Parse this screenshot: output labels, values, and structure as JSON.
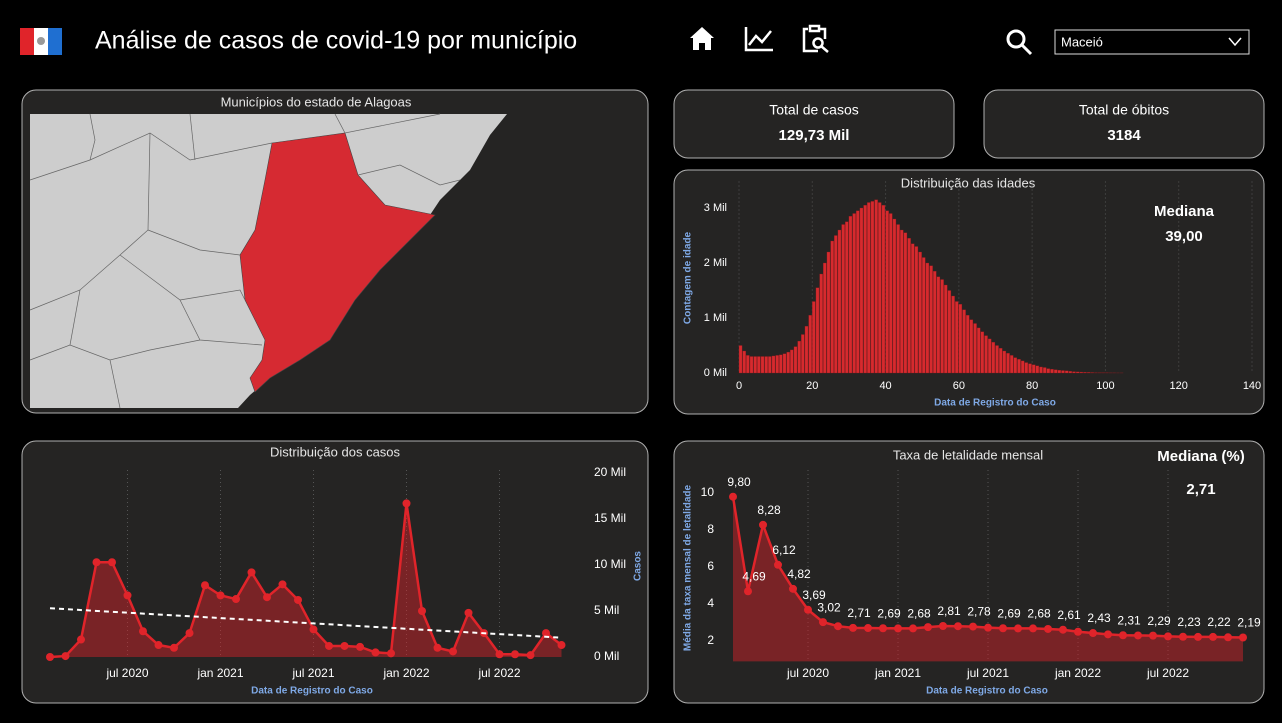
{
  "header": {
    "title": "Análise de casos de covid-19 por município",
    "dropdown": "Maceió"
  },
  "cards": [
    {
      "label": "Total de casos",
      "value": "129,73 Mil"
    },
    {
      "label": "Total de óbitos",
      "value": 3184
    }
  ],
  "map": {
    "title": "Municípios do estado de Alagoas"
  },
  "chart_data": [
    {
      "type": "histogram",
      "title": "Distribuição das idades",
      "x_label": "Data de Registro do Caso",
      "y_label": "Contagem de idade",
      "bins": [
        0,
        1,
        2,
        3,
        4,
        5,
        6,
        7,
        8,
        9,
        10,
        11,
        12,
        13,
        14,
        15,
        16,
        17,
        18,
        19,
        20,
        21,
        22,
        23,
        24,
        25,
        26,
        27,
        28,
        29,
        30,
        31,
        32,
        33,
        34,
        35,
        36,
        37,
        38,
        39,
        40,
        41,
        42,
        43,
        44,
        45,
        46,
        47,
        48,
        49,
        50,
        51,
        52,
        53,
        54,
        55,
        56,
        57,
        58,
        59,
        60,
        61,
        62,
        63,
        64,
        65,
        66,
        67,
        68,
        69,
        70,
        71,
        72,
        73,
        74,
        75,
        76,
        77,
        78,
        79,
        80,
        81,
        82,
        83,
        84,
        85,
        86,
        87,
        88,
        89,
        90,
        91,
        92,
        93,
        94,
        95,
        96,
        97,
        98,
        99,
        100,
        101,
        102,
        103,
        104,
        105
      ],
      "values": [
        0.5,
        0.4,
        0.32,
        0.3,
        0.3,
        0.3,
        0.3,
        0.3,
        0.3,
        0.31,
        0.32,
        0.33,
        0.35,
        0.38,
        0.42,
        0.48,
        0.58,
        0.7,
        0.85,
        1.05,
        1.3,
        1.55,
        1.8,
        2.0,
        2.2,
        2.4,
        2.5,
        2.6,
        2.7,
        2.75,
        2.85,
        2.9,
        2.95,
        3.0,
        3.05,
        3.1,
        3.12,
        3.15,
        3.1,
        3.05,
        2.95,
        2.9,
        2.8,
        2.7,
        2.6,
        2.55,
        2.45,
        2.35,
        2.3,
        2.2,
        2.1,
        2.0,
        1.95,
        1.85,
        1.75,
        1.7,
        1.6,
        1.5,
        1.4,
        1.3,
        1.25,
        1.15,
        1.05,
        0.97,
        0.9,
        0.82,
        0.75,
        0.68,
        0.62,
        0.56,
        0.5,
        0.45,
        0.4,
        0.36,
        0.32,
        0.28,
        0.25,
        0.22,
        0.19,
        0.17,
        0.15,
        0.13,
        0.11,
        0.1,
        0.08,
        0.07,
        0.06,
        0.05,
        0.045,
        0.04,
        0.03,
        0.025,
        0.02,
        0.017,
        0.014,
        0.011,
        0.009,
        0.007,
        0.005,
        0.004,
        0.003,
        0.002,
        0.002,
        0.001,
        0.001
      ],
      "color": "#d62a2e",
      "xlim": [
        0,
        140
      ],
      "xticks": [
        0,
        20,
        40,
        60,
        80,
        100,
        120,
        140
      ],
      "ylim": [
        0,
        3.3
      ],
      "yticks": [
        {
          "value": 0,
          "label": "0 Mil"
        },
        {
          "value": 1,
          "label": "1 Mil"
        },
        {
          "value": 2,
          "label": "2 Mil"
        },
        {
          "value": 3,
          "label": "3 Mil"
        }
      ],
      "grid": true,
      "annotation": {
        "title": "Mediana",
        "value": "39,00"
      }
    },
    {
      "type": "line",
      "title": "Distribuição dos casos",
      "x_label": "Data de Registro do Caso",
      "y_label": "Casos",
      "x": [
        "2020-02",
        "2020-03",
        "2020-04",
        "2020-05",
        "2020-06",
        "2020-07",
        "2020-08",
        "2020-09",
        "2020-10",
        "2020-11",
        "2020-12",
        "2021-01",
        "2021-02",
        "2021-03",
        "2021-04",
        "2021-05",
        "2021-06",
        "2021-07",
        "2021-08",
        "2021-09",
        "2021-10",
        "2021-11",
        "2021-12",
        "2022-01",
        "2022-02",
        "2022-03",
        "2022-04",
        "2022-05",
        "2022-06",
        "2022-07",
        "2022-08",
        "2022-09",
        "2022-10",
        "2022-11"
      ],
      "xticks": [
        {
          "value": "2020-07",
          "label": "jul 2020"
        },
        {
          "value": "2021-01",
          "label": "jan 2021"
        },
        {
          "value": "2021-07",
          "label": "jul 2021"
        },
        {
          "value": "2022-01",
          "label": "jan 2022"
        },
        {
          "value": "2022-07",
          "label": "jul 2022"
        }
      ],
      "series": [
        {
          "color": "#e0242a",
          "axis": "y2",
          "values": [
            0,
            0.1,
            1.9,
            10.3,
            10.3,
            6.7,
            2.8,
            1.3,
            1,
            2.6,
            7.8,
            6.7,
            6.3,
            9.2,
            6.5,
            7.9,
            6.2,
            3,
            1.2,
            1.2,
            1.1,
            0.5,
            0.4,
            16.7,
            5,
            1,
            0.6,
            4.8,
            2.6,
            0.3,
            0.3,
            0.2,
            2.6,
            1.3
          ]
        }
      ],
      "trend": {
        "color": "#ffffff",
        "values": [
          5.3,
          2.1
        ]
      },
      "y2lim": [
        0,
        20
      ],
      "y2ticks": [
        {
          "value": 0,
          "label": "0 Mil"
        },
        {
          "value": 5,
          "label": "5 Mil"
        },
        {
          "value": 10,
          "label": "10 Mil"
        },
        {
          "value": 15,
          "label": "15 Mil"
        },
        {
          "value": 20,
          "label": "20 Mil"
        }
      ],
      "grid": true
    },
    {
      "type": "line",
      "title": "Taxa de letalidade mensal",
      "x_label": "Data de Registro do Caso",
      "y_label": "Média da taxa mensal de letalidade",
      "x": [
        "2020-02",
        "2020-03",
        "2020-04",
        "2020-05",
        "2020-06",
        "2020-07",
        "2020-08",
        "2020-09",
        "2020-10",
        "2020-11",
        "2020-12",
        "2021-01",
        "2021-02",
        "2021-03",
        "2021-04",
        "2021-05",
        "2021-06",
        "2021-07",
        "2021-08",
        "2021-09",
        "2021-10",
        "2021-11",
        "2021-12",
        "2022-01",
        "2022-02",
        "2022-03",
        "2022-04",
        "2022-05",
        "2022-06",
        "2022-07",
        "2022-08",
        "2022-09",
        "2022-10",
        "2022-11",
        "2022-12"
      ],
      "xticks": [
        {
          "value": "2020-07",
          "label": "jul 2020"
        },
        {
          "value": "2021-01",
          "label": "jan 2021"
        },
        {
          "value": "2021-07",
          "label": "jul 2021"
        },
        {
          "value": "2022-01",
          "label": "jan 2022"
        },
        {
          "value": "2022-07",
          "label": "jul 2022"
        }
      ],
      "series": [
        {
          "color": "#e0242a",
          "values": [
            9.8,
            4.69,
            8.28,
            6.12,
            4.82,
            3.69,
            3.02,
            2.8,
            2.71,
            2.7,
            2.69,
            2.68,
            2.68,
            2.75,
            2.81,
            2.8,
            2.78,
            2.72,
            2.69,
            2.68,
            2.68,
            2.65,
            2.61,
            2.5,
            2.43,
            2.36,
            2.31,
            2.3,
            2.29,
            2.25,
            2.23,
            2.22,
            2.22,
            2.2,
            2.19
          ],
          "value_labels": [
            "9,80",
            "4,69",
            "8,28",
            "6,12",
            "4,82",
            "3,69",
            "3,02",
            null,
            "2,71",
            null,
            "2,69",
            null,
            "2,68",
            null,
            "2,81",
            null,
            "2,78",
            null,
            "2,69",
            null,
            "2,68",
            null,
            "2,61",
            null,
            "2,43",
            null,
            "2,31",
            null,
            "2,29",
            null,
            "2,23",
            null,
            "2,22",
            null,
            "2,19"
          ]
        }
      ],
      "ylim": [
        0.9,
        10.6
      ],
      "yticks": [
        2,
        4,
        6,
        8,
        10
      ],
      "grid": true,
      "annotation": {
        "title": "Mediana (%)",
        "value": "2,71"
      }
    }
  ]
}
